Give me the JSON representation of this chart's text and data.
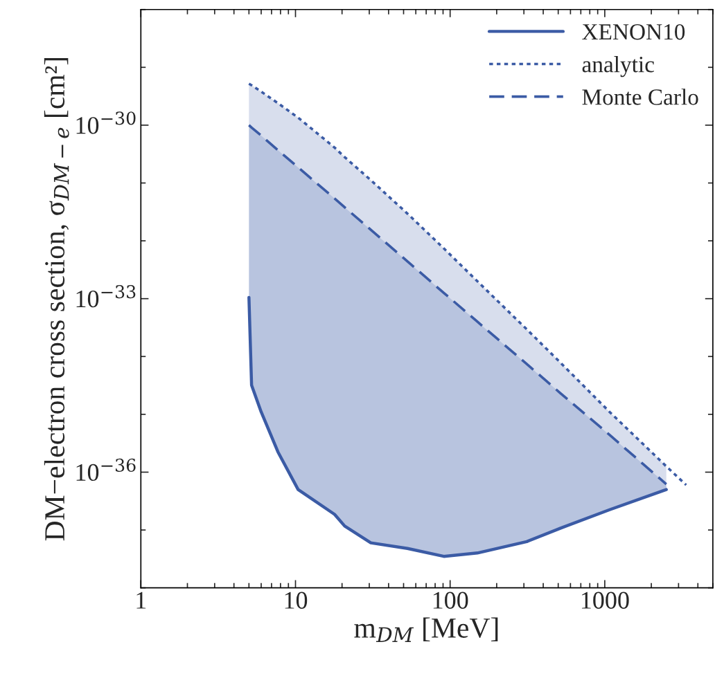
{
  "chart_data": {
    "type": "line",
    "xlabel": "m$_{DM}$ [MeV]",
    "ylabel": "DM−electron cross section, σ$_{DM−e}$ [cm²]",
    "log": "xy",
    "xlim": [
      1,
      5000
    ],
    "ylim": [
      1e-38,
      1e-28
    ],
    "xticks": [
      1,
      10,
      100,
      1000
    ],
    "yticks": [
      {
        "value": 1e-30,
        "label": "10$^{−30}$"
      },
      {
        "value": 1e-33,
        "label": "10$^{−33}$"
      },
      {
        "value": 1e-36,
        "label": "10$^{−36}$"
      }
    ],
    "grid": false,
    "legend": "top right",
    "marker": "none",
    "series": [
      {
        "name": "XENON10",
        "color": "#3b5ba5",
        "line_style": "solid",
        "x": [
          5,
          5.2,
          6,
          7.7,
          10.4,
          17.9,
          20.8,
          30.7,
          53,
          91,
          150,
          313,
          515,
          1075,
          2500
        ],
        "values": [
          1.05e-33,
          3.2e-35,
          1.1e-35,
          2.24e-36,
          5e-37,
          1.86e-37,
          1.17e-37,
          6e-38,
          4.8e-38,
          3.5e-38,
          4e-38,
          6.3e-38,
          1.07e-37,
          2.24e-37,
          5e-37
        ]
      },
      {
        "name": "analytic",
        "color": "#3b5ba5",
        "line_style": "dotted",
        "x": [
          5,
          5.2,
          6,
          7.7,
          10.4,
          17.9,
          20.8,
          30.7,
          53,
          91,
          150,
          313,
          515,
          1075,
          2500,
          3360
        ],
        "values": [
          5.2e-30,
          4.9e-30,
          3.8e-30,
          2.4e-30,
          1.35e-30,
          4.1e-31,
          2.8e-31,
          1.12e-31,
          2.95e-32,
          7.4e-33,
          2e-33,
          2.95e-34,
          7.9e-35,
          1.1e-35,
          1.26e-36,
          6e-37
        ]
      },
      {
        "name": "Monte Carlo",
        "color": "#3b5ba5",
        "line_style": "dashed",
        "x": [
          5,
          5.2,
          6,
          7.7,
          10.4,
          17.9,
          20.8,
          30.7,
          53,
          91,
          150,
          313,
          515,
          1075,
          2500
        ],
        "values": [
          1e-30,
          9.1e-31,
          6.6e-31,
          3.7e-31,
          1.86e-31,
          5.4e-32,
          3.8e-32,
          1.55e-32,
          4.4e-33,
          1.26e-33,
          4e-34,
          7.4e-35,
          2.34e-35,
          4.4e-36,
          6.2e-37
        ],
        "lower": [
          1.05e-33,
          3.2e-35,
          1.1e-35,
          2.24e-36,
          5e-37,
          1.86e-37,
          1.17e-37,
          6e-38,
          4.8e-38,
          3.5e-38,
          4e-38,
          6.3e-38,
          1.07e-37,
          2.24e-37,
          5e-37
        ],
        "upper": [
          5.2e-30,
          4.9e-30,
          3.8e-30,
          2.4e-30,
          1.35e-30,
          4.1e-31,
          2.8e-31,
          1.12e-31,
          2.95e-32,
          7.4e-33,
          2e-33,
          2.95e-34,
          7.9e-35,
          1.1e-35,
          1.26e-36
        ]
      }
    ]
  }
}
